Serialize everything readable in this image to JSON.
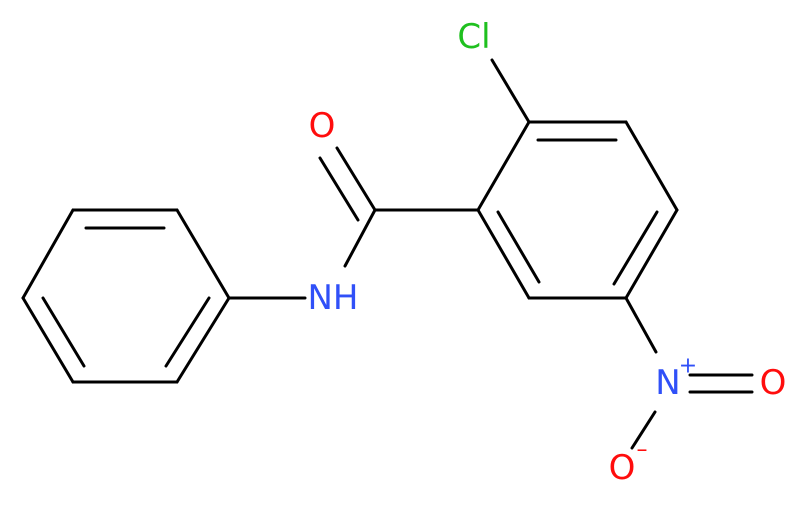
{
  "atoms": [
    {
      "label": "Cl"
    },
    {
      "label": "O"
    },
    {
      "label": "NH"
    },
    {
      "label": "N",
      "charge": "+"
    },
    {
      "label": "O"
    },
    {
      "label": "O",
      "charge": "–"
    }
  ]
}
